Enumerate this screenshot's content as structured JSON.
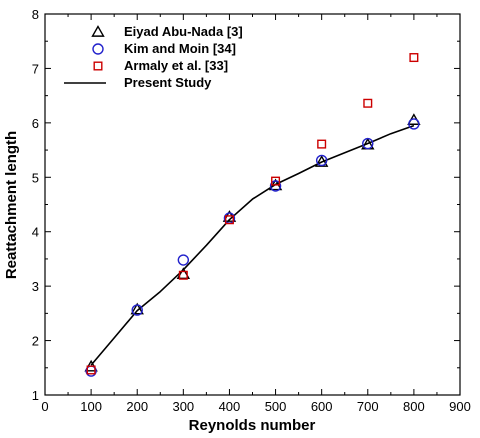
{
  "chart_data": {
    "type": "scatter",
    "xlabel": "Reynolds number",
    "ylabel": "Reattachment length",
    "xlim": [
      0,
      900
    ],
    "ylim": [
      1,
      8
    ],
    "xticks": [
      "0",
      "100",
      "200",
      "300",
      "400",
      "500",
      "600",
      "700",
      "800",
      "900"
    ],
    "yticks": [
      "1",
      "2",
      "3",
      "4",
      "5",
      "6",
      "7",
      "8"
    ],
    "grid": false,
    "legend": "top-left",
    "series": [
      {
        "name": "Eiyad Abu-Nada [3]",
        "marker": "triangle",
        "color": "#000000",
        "x": [
          100,
          200,
          300,
          400,
          500,
          600,
          700,
          800
        ],
        "y": [
          1.52,
          2.57,
          3.22,
          4.27,
          4.85,
          5.28,
          5.6,
          6.05
        ]
      },
      {
        "name": "Kim and Moin [34]",
        "marker": "circle",
        "color": "#2222cc",
        "x": [
          100,
          200,
          300,
          400,
          500,
          600,
          700,
          800
        ],
        "y": [
          1.44,
          2.56,
          3.48,
          4.25,
          4.84,
          5.31,
          5.62,
          5.98
        ]
      },
      {
        "name": "Armaly et al. [33]",
        "marker": "square",
        "color": "#cc0000",
        "x": [
          100,
          300,
          400,
          500,
          600,
          700,
          800
        ],
        "y": [
          1.46,
          3.2,
          4.22,
          4.93,
          5.61,
          6.36,
          7.2
        ]
      },
      {
        "name": "Present Study",
        "marker": "line",
        "color": "#000000",
        "x": [
          100,
          150,
          200,
          250,
          300,
          350,
          400,
          450,
          500,
          550,
          600,
          650,
          700,
          750,
          800
        ],
        "y": [
          1.55,
          2.05,
          2.55,
          2.9,
          3.3,
          3.75,
          4.22,
          4.6,
          4.87,
          5.07,
          5.28,
          5.45,
          5.62,
          5.8,
          5.95
        ]
      }
    ]
  }
}
